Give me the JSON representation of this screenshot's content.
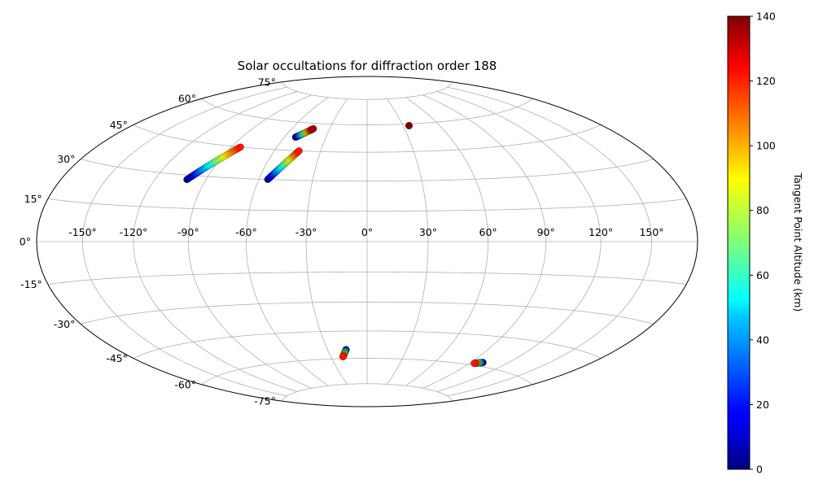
{
  "chart_data": {
    "type": "scatter",
    "projection": "hammer",
    "title": "Solar occultations for diffraction order 188",
    "xlabel": "",
    "ylabel": "",
    "grid": true,
    "lon_ticks": [
      -150,
      -120,
      -90,
      -60,
      -30,
      0,
      30,
      60,
      90,
      120,
      150
    ],
    "lon_tick_labels": [
      "-150°",
      "-120°",
      "-90°",
      "-60°",
      "-30°",
      "0°",
      "30°",
      "60°",
      "90°",
      "120°",
      "150°"
    ],
    "lat_ticks": [
      -75,
      -60,
      -45,
      -30,
      -15,
      0,
      15,
      30,
      45,
      60,
      75
    ],
    "lat_tick_labels": [
      "-75°",
      "-60°",
      "-45°",
      "-30°",
      "-15°",
      "0°",
      "15°",
      "30°",
      "45°",
      "60°",
      "75°"
    ],
    "colorbar": {
      "label": "Tangent Point Altitude (km)",
      "colormap": "jet",
      "range": [
        0,
        140
      ],
      "ticks": [
        0,
        20,
        40,
        60,
        80,
        100,
        120,
        140
      ],
      "tick_labels": [
        "0",
        "20",
        "40",
        "60",
        "80",
        "100",
        "120",
        "140"
      ],
      "position": "right"
    },
    "series": [
      {
        "lon_start": -101,
        "lat_start": 28,
        "alt_start": 0,
        "lon_end": -84,
        "lat_end": 45,
        "alt_end": 120
      },
      {
        "lon_start": -55,
        "lat_start": 30,
        "alt_start": 0,
        "lon_end": -44,
        "lat_end": 45,
        "alt_end": 120
      },
      {
        "lon_start": -52,
        "lat_start": 52,
        "alt_start": 0,
        "lon_end": -43,
        "lat_end": 57,
        "alt_end": 135
      },
      {
        "lon_start": 35,
        "lat_start": 59,
        "alt_start": 140,
        "lon_end": 35,
        "lat_end": 59,
        "alt_end": 140
      },
      {
        "lon_start": -16,
        "lat_start": -55,
        "alt_start": 10,
        "lon_end": -20,
        "lat_end": -59,
        "alt_end": 120
      },
      {
        "lon_start": 100,
        "lat_start": -58,
        "alt_start": 0,
        "lon_end": 94,
        "lat_end": -59,
        "alt_end": 120
      }
    ]
  }
}
